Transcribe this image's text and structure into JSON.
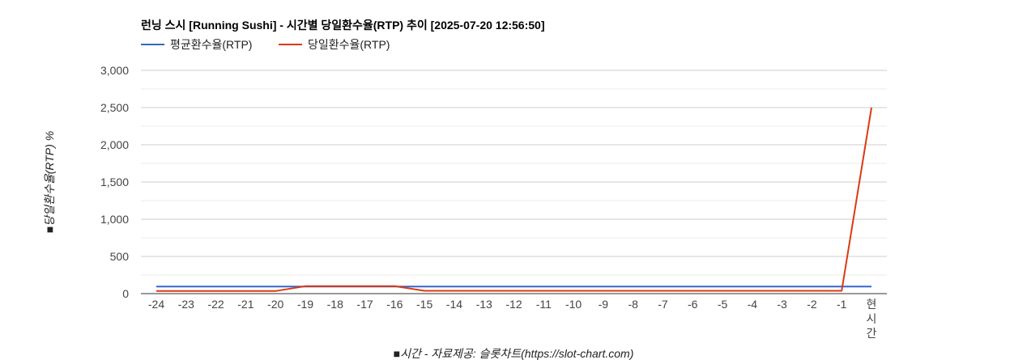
{
  "chart_data": {
    "type": "line",
    "title": "런닝 스시 [Running Sushi] - 시간별 당일환수율(RTP) 추이 [2025-07-20 12:56:50]",
    "xlabel": "■시간 - 자료제공: 슬롯차트(https://slot-chart.com)",
    "ylabel": "■당일환수율(RTP) %",
    "categories": [
      "-24",
      "-23",
      "-22",
      "-21",
      "-20",
      "-19",
      "-18",
      "-17",
      "-16",
      "-15",
      "-14",
      "-13",
      "-12",
      "-11",
      "-10",
      "-9",
      "-8",
      "-7",
      "-6",
      "-5",
      "-4",
      "-3",
      "-2",
      "-1",
      "현시간"
    ],
    "y_ticks": [
      0,
      500,
      1000,
      1500,
      2000,
      2500,
      3000
    ],
    "y_tick_labels": [
      "0",
      "500",
      "1,000",
      "1,500",
      "2,000",
      "2,500",
      "3,000"
    ],
    "ylim": [
      0,
      3000
    ],
    "grid": true,
    "legend_position": "top-left",
    "series": [
      {
        "name": "평균환수율(RTP)",
        "color": "#3366cc",
        "values": [
          96,
          96,
          96,
          96,
          96,
          96,
          96,
          96,
          96,
          96,
          96,
          96,
          96,
          96,
          96,
          96,
          96,
          96,
          96,
          96,
          96,
          96,
          96,
          96,
          96
        ]
      },
      {
        "name": "당일환수율(RTP)",
        "color": "#dc3912",
        "values": [
          35,
          35,
          35,
          35,
          35,
          100,
          100,
          100,
          100,
          38,
          38,
          38,
          38,
          38,
          38,
          38,
          38,
          38,
          38,
          38,
          38,
          38,
          38,
          38,
          2500
        ]
      }
    ]
  }
}
